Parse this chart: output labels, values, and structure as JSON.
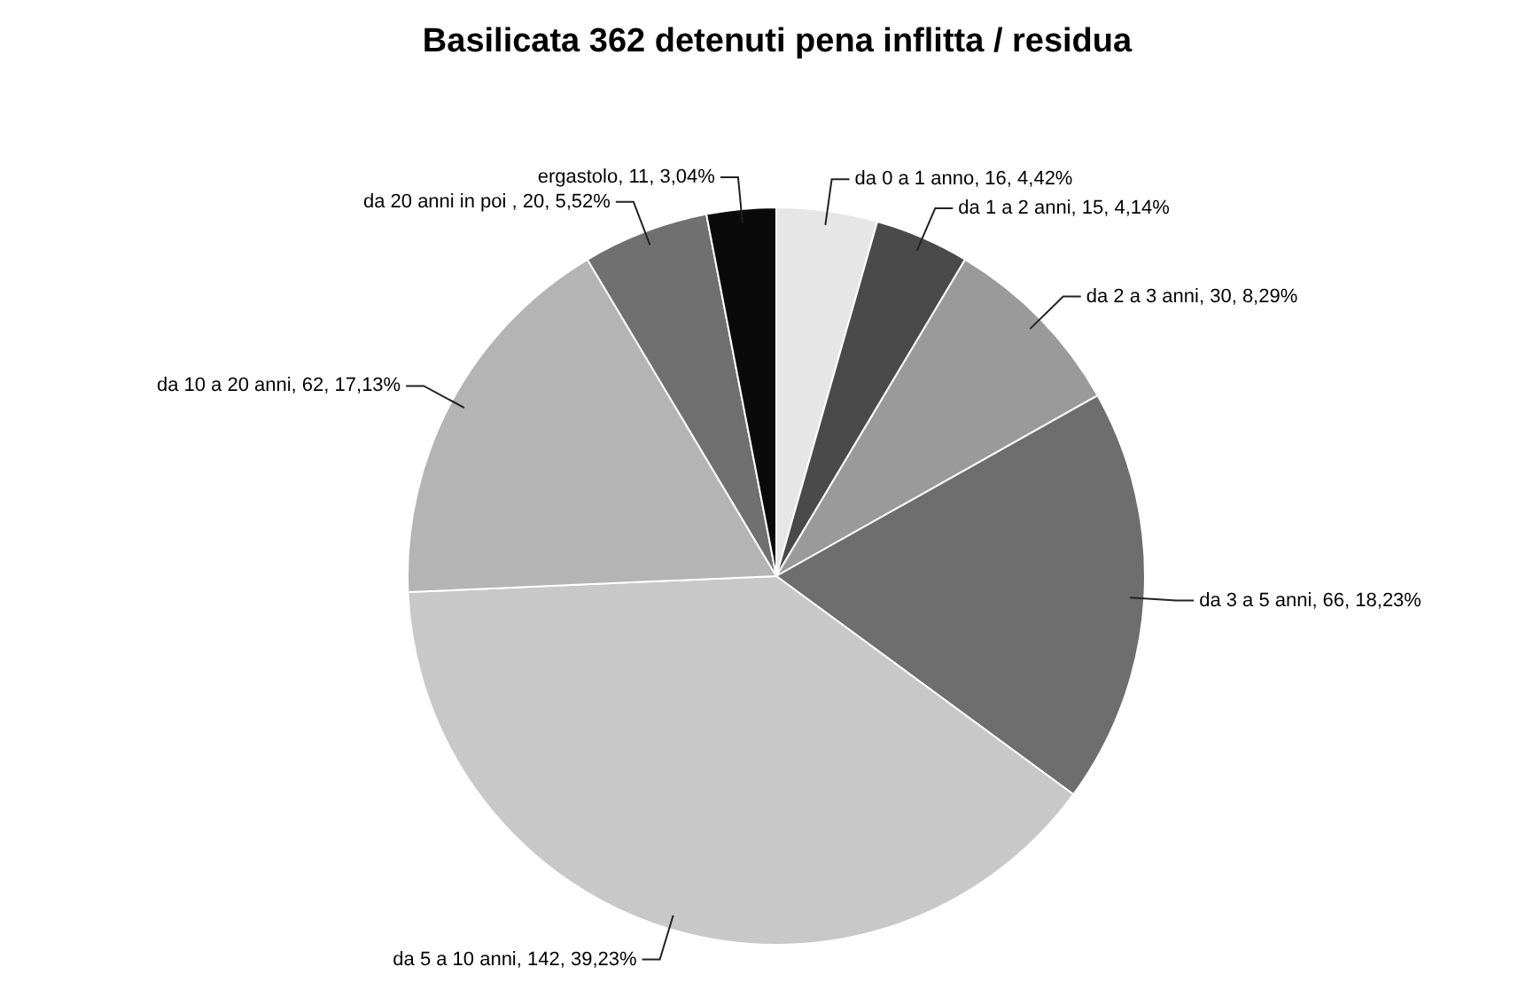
{
  "chart_data": {
    "type": "pie",
    "title": "Basilicata 362 detenuti pena inflitta / residua",
    "categories": [
      "da 0 a 1 anno",
      "da 1 a 2 anni",
      "da 2 a 3 anni",
      "da 3 a 5 anni",
      "da 5 a 10 anni",
      "da 10 a 20 anni",
      "da 20 anni in poi ",
      "ergastolo"
    ],
    "values": [
      16,
      15,
      30,
      66,
      142,
      62,
      20,
      11
    ],
    "value_labels": [
      "16, 4,42%",
      "15, 4,14%",
      "30, 8,29%",
      "66, 18,23%",
      "142, 39,23%",
      "62, 17,13%",
      "20, 5,52%",
      "11, 3,04%"
    ],
    "colors": [
      "#e6e6e6",
      "#4a4a4a",
      "#9a9a9a",
      "#6e6e6e",
      "#c8c8c8",
      "#b4b4b4",
      "#707070",
      "#0a0a0a"
    ],
    "legend": false
  }
}
